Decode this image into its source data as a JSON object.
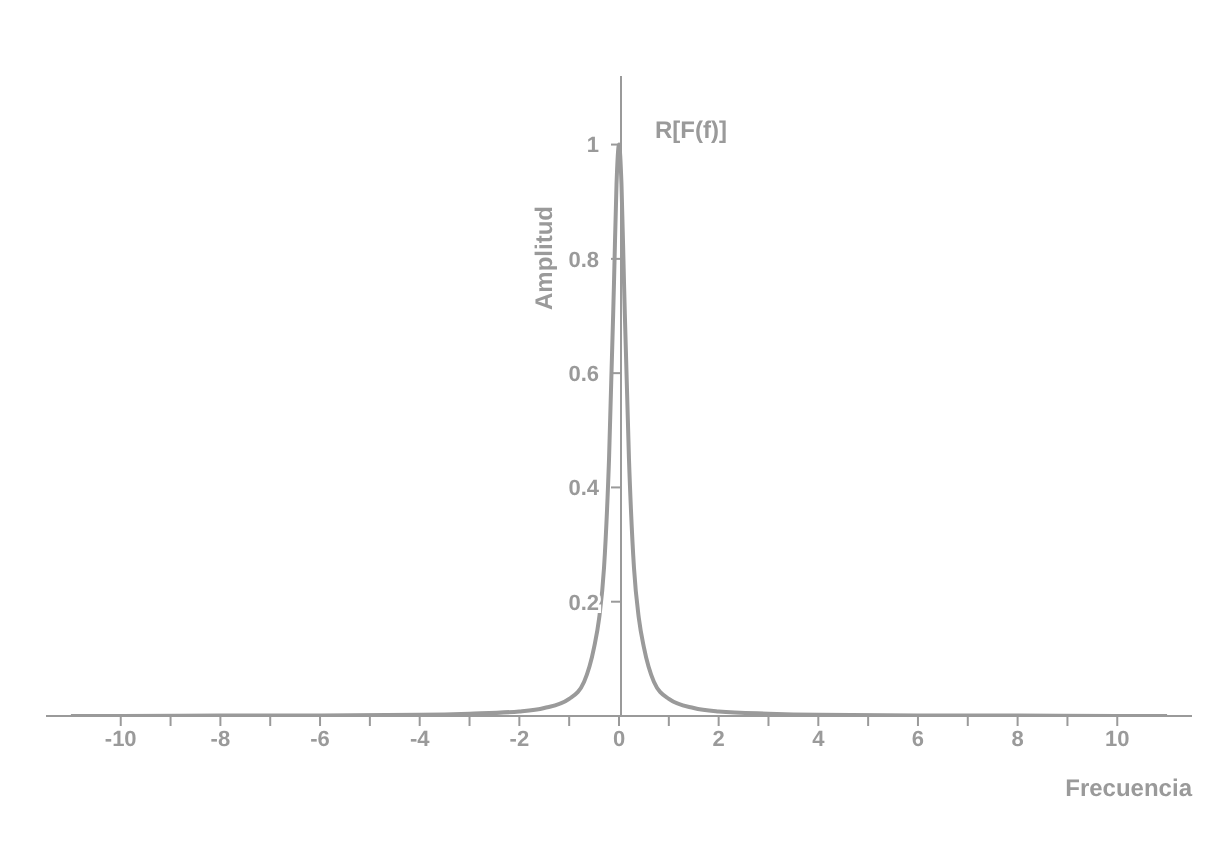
{
  "chart_data": {
    "type": "line",
    "xlabel": "Frecuencia",
    "ylabel": "Amplitud",
    "annotations": [
      "R[F(f)]"
    ],
    "x": [
      -11,
      -10,
      -8,
      -6,
      -4,
      -3,
      -2,
      -1.5,
      -1,
      -0.7,
      -0.5,
      -0.4,
      -0.3,
      -0.2,
      -0.1,
      -0.05,
      0,
      0.05,
      0.1,
      0.2,
      0.3,
      0.4,
      0.5,
      0.7,
      1,
      1.5,
      2,
      3,
      4,
      6,
      8,
      10,
      11
    ],
    "series": [
      {
        "color": "#9a9a9a",
        "values": [
          0,
          0,
          0.001,
          0.001,
          0.002,
          0.004,
          0.008,
          0.014,
          0.03,
          0.06,
          0.12,
          0.17,
          0.26,
          0.45,
          0.76,
          0.93,
          1,
          0.93,
          0.76,
          0.45,
          0.26,
          0.17,
          0.12,
          0.06,
          0.03,
          0.014,
          0.008,
          0.004,
          0.002,
          0.001,
          0.001,
          0,
          0
        ]
      }
    ],
    "xlim": [
      -11.5,
      11.5
    ],
    "ylim": [
      0,
      1.12
    ],
    "xticks": [
      -10,
      {
        "value": -9,
        "label": null
      },
      -8,
      {
        "value": -7,
        "label": null
      },
      -6,
      {
        "value": -5,
        "label": null
      },
      -4,
      {
        "value": -3,
        "label": null
      },
      -2,
      {
        "value": -1,
        "label": null
      },
      0,
      {
        "value": 1,
        "label": null
      },
      2,
      {
        "value": 3,
        "label": null
      },
      4,
      {
        "value": 5,
        "label": null
      },
      6,
      {
        "value": 7,
        "label": null
      },
      8,
      {
        "value": 9,
        "label": null
      },
      10
    ],
    "yticks": [
      0.2,
      0.4,
      0.6,
      0.8,
      1
    ],
    "marker": "none",
    "line_style": "solid"
  }
}
